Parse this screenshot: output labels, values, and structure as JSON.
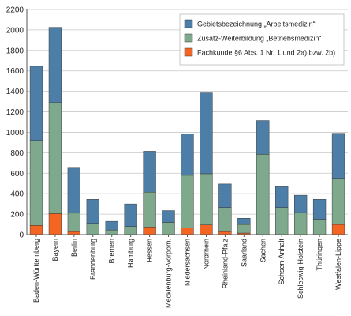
{
  "chart_data": {
    "type": "bar",
    "stacked": true,
    "categories": [
      "Baden-Württemberg",
      "Bayern",
      "Berlin",
      "Brandenburg",
      "Bremen",
      "Hamburg",
      "Hessen",
      "Mecklenburg-Vorpom.",
      "Niedersachsen",
      "Nordrhein",
      "Rheinland-Pfalz",
      "Saarland",
      "Sachen",
      "Schsen-Anhalt",
      "Schleswig-Holstein",
      "Thüringen",
      "Westfalen-Lippe"
    ],
    "series": [
      {
        "name": "Fachkunde §6 Abs. 1 Nr. 1 und 2a) bzw. 2b)",
        "color": "#f26522",
        "values": [
          90,
          205,
          30,
          0,
          0,
          0,
          75,
          0,
          65,
          95,
          30,
          15,
          0,
          0,
          0,
          0,
          100
        ]
      },
      {
        "name": "Zusatz-Weiterbildung „Betriebsmedizin“",
        "color": "#7fa98c",
        "values": [
          830,
          1085,
          180,
          110,
          45,
          80,
          340,
          120,
          515,
          500,
          235,
          85,
          785,
          265,
          215,
          150,
          450
        ]
      },
      {
        "name": "Gebietsbezeichnung „Arbeitsmedizin“",
        "color": "#4d7ea8",
        "values": [
          725,
          735,
          440,
          235,
          85,
          220,
          400,
          115,
          405,
          790,
          230,
          60,
          330,
          205,
          170,
          195,
          440
        ]
      }
    ],
    "title": "",
    "xlabel": "",
    "ylabel": "",
    "ylim": [
      0,
      2200
    ],
    "yticks": [
      0,
      200,
      400,
      600,
      800,
      1000,
      1200,
      1400,
      1600,
      1800,
      2000,
      2200
    ],
    "grid": true,
    "legend_position": "top-right",
    "legend_order": [
      2,
      1,
      0
    ]
  }
}
